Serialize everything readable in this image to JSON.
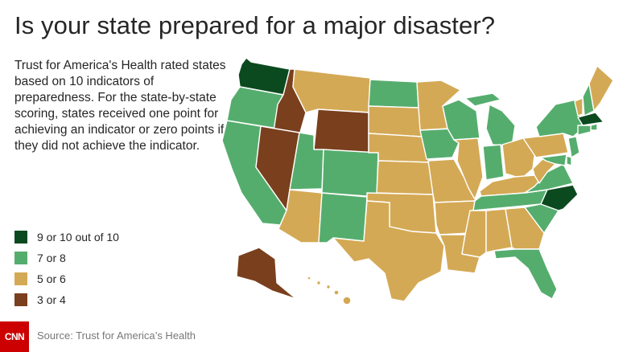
{
  "header": {
    "title": "Is your state prepared for a major disaster?"
  },
  "description": "Trust for America's Health rated states based on 10 indicators of preparedness. For the state-by-state scoring, states received one point for achieving an indicator or zero points if they did not achieve the indicator.",
  "legend": [
    {
      "key": "high",
      "label": "9 or 10 out of 10",
      "color": "#0b4a1f"
    },
    {
      "key": "good",
      "label": "7 or 8",
      "color": "#55ad6d"
    },
    {
      "key": "mid",
      "label": "5 or 6",
      "color": "#d4a955"
    },
    {
      "key": "low",
      "label": "3 or 4",
      "color": "#7a3f1d"
    }
  ],
  "states": {
    "WA": "high",
    "OR": "good",
    "CA": "good",
    "ID": "low",
    "NV": "low",
    "MT": "mid",
    "WY": "low",
    "UT": "good",
    "CO": "good",
    "AZ": "mid",
    "NM": "good",
    "ND": "good",
    "SD": "mid",
    "NE": "mid",
    "KS": "mid",
    "OK": "mid",
    "TX": "mid",
    "MN": "mid",
    "IA": "good",
    "MO": "mid",
    "AR": "mid",
    "LA": "mid",
    "WI": "good",
    "IL": "mid",
    "MI": "good",
    "IN": "good",
    "OH": "mid",
    "KY": "mid",
    "TN": "good",
    "MS": "mid",
    "AL": "mid",
    "GA": "mid",
    "FL": "good",
    "SC": "good",
    "NC": "high",
    "VA": "good",
    "WV": "mid",
    "PA": "mid",
    "NY": "good",
    "VT": "mid",
    "NH": "good",
    "ME": "mid",
    "MA": "high",
    "RI": "good",
    "CT": "good",
    "NJ": "good",
    "DE": "good",
    "MD": "good",
    "AK": "low",
    "HI": "mid"
  },
  "footer": {
    "logo": "CNN",
    "source": "Source: Trust for America’s Health"
  }
}
